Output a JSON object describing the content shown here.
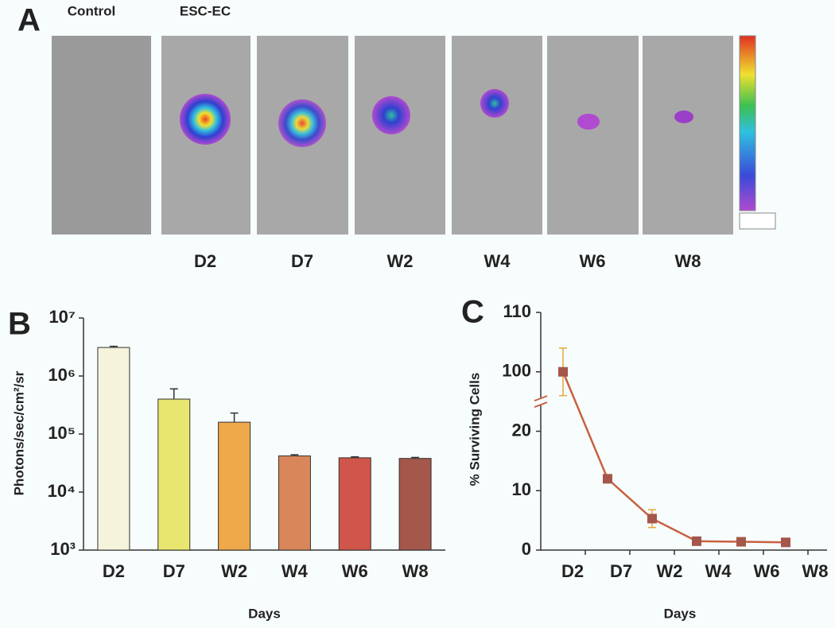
{
  "panel_a": {
    "panel": "A",
    "groups": [
      "Control",
      "ESC-EC"
    ],
    "timepoints": [
      "D2",
      "D7",
      "W2",
      "W4",
      "W6",
      "W8"
    ]
  },
  "chart_data": [
    {
      "type": "bar",
      "panel": "B",
      "y_label": "Photons/sec/cm²/sr",
      "x_label": "Days",
      "log_scale": true,
      "categories": [
        "D2",
        "D7",
        "W2",
        "W4",
        "W6",
        "W8"
      ],
      "values": [
        3100000,
        400000,
        160000,
        42000,
        39000,
        38000
      ],
      "errors": [
        150000,
        200000,
        70000,
        2000,
        1500,
        1500
      ],
      "colors": [
        "#f5f3dc",
        "#e8e66e",
        "#efa84a",
        "#d9875a",
        "#d0554a",
        "#a4574a"
      ],
      "ylim": [
        1000,
        10000000
      ],
      "yticks": [
        {
          "value": 1000,
          "label": "10³"
        },
        {
          "value": 10000,
          "label": "10⁴"
        },
        {
          "value": 100000,
          "label": "10⁵"
        },
        {
          "value": 1000000,
          "label": "10⁶"
        },
        {
          "value": 10000000,
          "label": "10⁷"
        }
      ]
    },
    {
      "type": "line",
      "panel": "C",
      "y_label": "% Surviving Cells",
      "x_label": "Days",
      "categories": [
        "D2",
        "D7",
        "W2",
        "W4",
        "W6",
        "W8"
      ],
      "values": [
        100,
        12,
        5.3,
        1.5,
        1.4,
        1.3
      ],
      "errors": [
        4,
        0.5,
        1.5,
        0.2,
        0.2,
        0.2
      ],
      "color": "#c9603f",
      "marker_color": "#a4574a",
      "error_color": "#e8a73a",
      "ylim": [
        0,
        110
      ],
      "axis_break": [
        25,
        95
      ],
      "yticks": [
        0,
        10,
        20,
        100,
        110
      ]
    }
  ]
}
